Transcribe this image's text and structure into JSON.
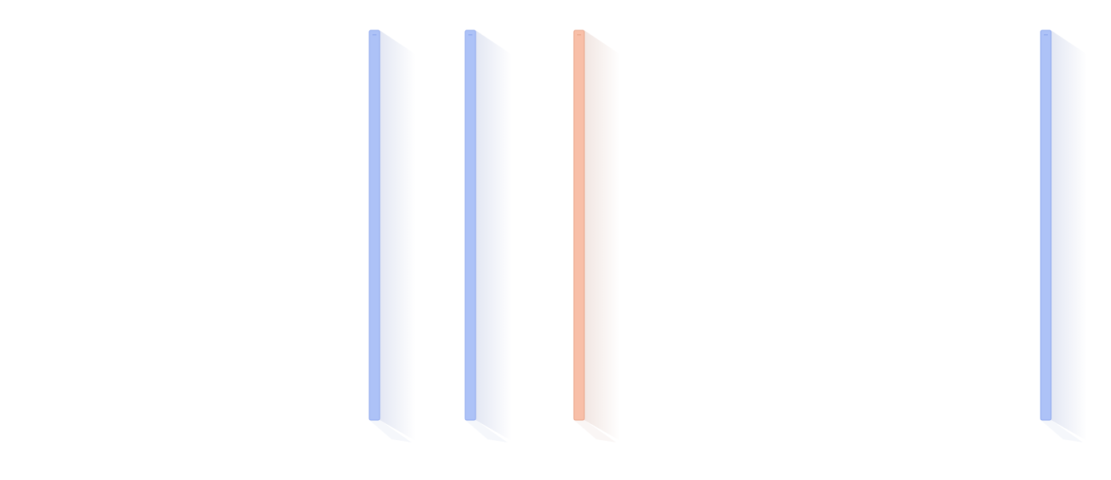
{
  "panels": [
    {
      "color": "#adc2f7",
      "border": "#8fa8ee",
      "shade": "#e3e7f3"
    },
    {
      "color": "#adc2f7",
      "border": "#8fa8ee",
      "shade": "#e3e7f3"
    },
    {
      "color": "#f8bfa8",
      "border": "#e8a58a",
      "shade": "#f1e6e2"
    },
    {
      "color": "#adc2f7",
      "border": "#8fa8ee",
      "shade": "#e3e7f3"
    }
  ]
}
